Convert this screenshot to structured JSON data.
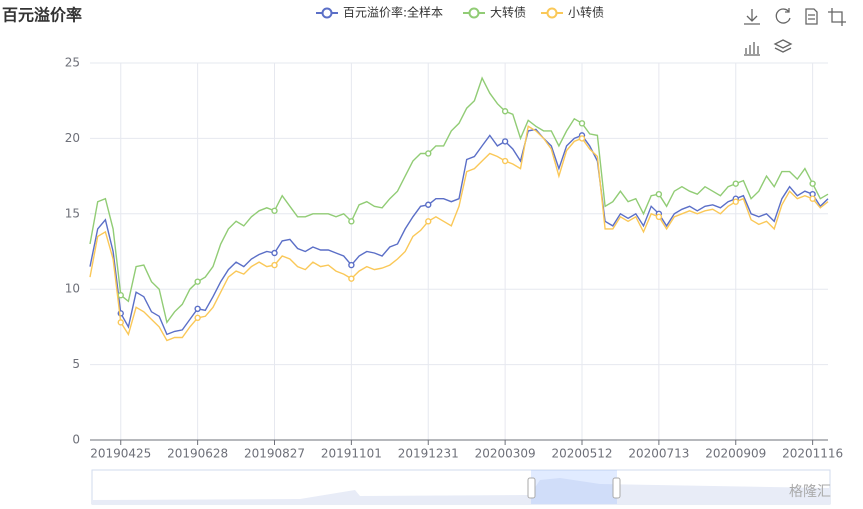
{
  "chart_data": {
    "type": "line",
    "title": "百元溢价率",
    "watermark": "格隆汇",
    "categories": [
      null,
      null,
      null,
      null,
      "20190425",
      null,
      null,
      null,
      null,
      null,
      null,
      null,
      null,
      null,
      "20190628",
      null,
      null,
      null,
      null,
      null,
      null,
      null,
      null,
      null,
      "20190827",
      null,
      null,
      null,
      null,
      null,
      null,
      null,
      null,
      null,
      "20191101",
      null,
      null,
      null,
      null,
      null,
      null,
      null,
      null,
      null,
      "20191231",
      null,
      null,
      null,
      null,
      null,
      null,
      null,
      null,
      null,
      "20200309",
      null,
      null,
      null,
      null,
      null,
      null,
      null,
      null,
      null,
      "20200512",
      null,
      null,
      null,
      null,
      null,
      null,
      null,
      null,
      null,
      "20200713",
      null,
      null,
      null,
      null,
      null,
      null,
      null,
      null,
      null,
      "20200909",
      null,
      null,
      null,
      null,
      null,
      null,
      null,
      null,
      null,
      "20201116",
      null,
      null
    ],
    "series": [
      {
        "name": "百元溢价率:全样本",
        "color": "#5b6fc7",
        "values": [
          11.5,
          14,
          14.6,
          12.5,
          8.4,
          7.5,
          9.8,
          9.5,
          8.5,
          8.2,
          7.0,
          7.2,
          7.3,
          8.0,
          8.7,
          8.6,
          9.5,
          10.5,
          11.3,
          11.8,
          11.5,
          12.0,
          12.3,
          12.5,
          12.4,
          13.2,
          13.3,
          12.7,
          12.5,
          12.8,
          12.6,
          12.6,
          12.4,
          12.2,
          11.6,
          12.2,
          12.5,
          12.4,
          12.2,
          12.8,
          13.0,
          14.0,
          14.8,
          15.5,
          15.6,
          16.0,
          16.0,
          15.8,
          16.0,
          18.6,
          18.8,
          19.5,
          20.2,
          19.5,
          19.8,
          19.3,
          18.5,
          20.5,
          20.6,
          20.0,
          19.5,
          18.0,
          19.5,
          20.0,
          20.2,
          19.5,
          18.5,
          14.5,
          14.2,
          15.0,
          14.7,
          15.0,
          14.2,
          15.5,
          15.0,
          14.2,
          15.0,
          15.3,
          15.5,
          15.2,
          15.5,
          15.6,
          15.4,
          15.8,
          16.0,
          16.2,
          15.0,
          14.8,
          15.0,
          14.5,
          16.0,
          16.8,
          16.2,
          16.5,
          16.3,
          15.5,
          16.0
        ]
      },
      {
        "name": "大转债",
        "color": "#91cc75",
        "values": [
          13,
          15.8,
          16,
          14,
          9.6,
          9.2,
          11.5,
          11.6,
          10.5,
          10.0,
          7.8,
          8.5,
          9.0,
          10.0,
          10.5,
          10.8,
          11.5,
          13.0,
          14.0,
          14.5,
          14.2,
          14.8,
          15.2,
          15.4,
          15.2,
          16.2,
          15.5,
          14.8,
          14.8,
          15.0,
          15.0,
          15.0,
          14.8,
          15.0,
          14.5,
          15.6,
          15.8,
          15.5,
          15.4,
          16.0,
          16.5,
          17.5,
          18.5,
          19.0,
          19.0,
          19.5,
          19.5,
          20.5,
          21.0,
          22.0,
          22.5,
          24.0,
          23.0,
          22.3,
          21.8,
          21.6,
          20.0,
          21.2,
          20.8,
          20.5,
          20.5,
          19.5,
          20.5,
          21.3,
          21.0,
          20.3,
          20.2,
          15.5,
          15.8,
          16.5,
          15.8,
          16.0,
          15.0,
          16.2,
          16.3,
          15.5,
          16.5,
          16.8,
          16.5,
          16.3,
          16.8,
          16.5,
          16.2,
          16.8,
          17.0,
          17.2,
          16.0,
          16.5,
          17.5,
          16.8,
          17.8,
          17.8,
          17.3,
          18.0,
          17.0,
          16.0,
          16.3
        ]
      },
      {
        "name": "小转债",
        "color": "#fac858",
        "values": [
          10.8,
          13.5,
          13.8,
          12.0,
          7.8,
          7.0,
          8.8,
          8.5,
          8.0,
          7.5,
          6.6,
          6.8,
          6.8,
          7.5,
          8.1,
          8.2,
          8.8,
          9.8,
          10.8,
          11.2,
          11.0,
          11.5,
          11.8,
          11.5,
          11.6,
          12.2,
          12.0,
          11.5,
          11.3,
          11.8,
          11.5,
          11.6,
          11.2,
          11.0,
          10.7,
          11.2,
          11.5,
          11.3,
          11.4,
          11.6,
          12.0,
          12.5,
          13.5,
          13.9,
          14.5,
          14.8,
          14.5,
          14.2,
          15.5,
          17.8,
          18.0,
          18.5,
          19.0,
          18.8,
          18.5,
          18.3,
          18.0,
          20.8,
          20.5,
          20.0,
          19.3,
          17.5,
          19.2,
          19.8,
          20.0,
          19.3,
          18.8,
          14.0,
          14.0,
          14.8,
          14.5,
          14.8,
          13.8,
          15.0,
          14.8,
          14.0,
          14.8,
          15.0,
          15.2,
          15.0,
          15.2,
          15.3,
          15.0,
          15.5,
          15.8,
          16.0,
          14.6,
          14.3,
          14.5,
          14.0,
          15.6,
          16.5,
          16.0,
          16.2,
          16.0,
          15.4,
          15.8
        ]
      }
    ],
    "ylim": [
      0,
      25
    ],
    "yticks": [
      0,
      5,
      10,
      15,
      20,
      25
    ],
    "grid": true
  }
}
